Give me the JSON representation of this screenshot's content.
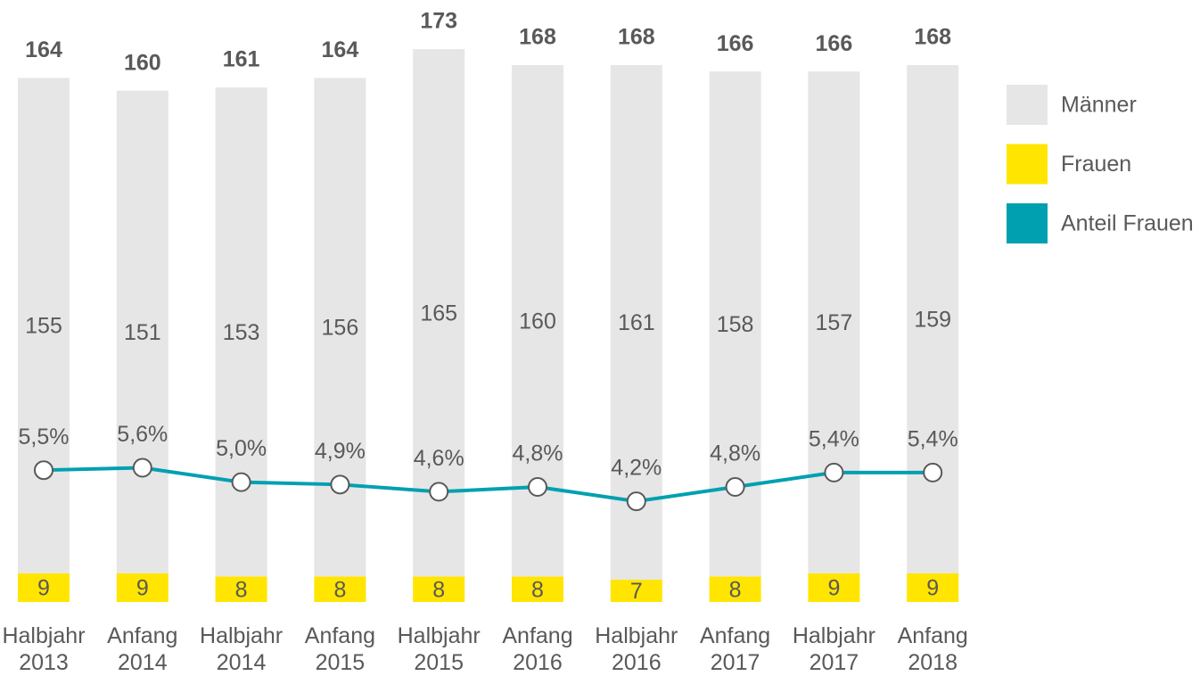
{
  "chart_data": {
    "type": "bar",
    "categories": [
      "Halbjahr 2013",
      "Anfang 2014",
      "Halbjahr 2014",
      "Anfang 2015",
      "Halbjahr 2015",
      "Anfang 2016",
      "Halbjahr 2016",
      "Anfang 2017",
      "Halbjahr 2017",
      "Anfang 2018"
    ],
    "stacked": true,
    "series": [
      {
        "name": "Männer",
        "color": "#e6e6e6",
        "values": [
          155,
          151,
          153,
          156,
          165,
          160,
          161,
          158,
          157,
          159
        ]
      },
      {
        "name": "Frauen",
        "color": "#ffe500",
        "values": [
          9,
          9,
          8,
          8,
          8,
          8,
          7,
          8,
          9,
          9
        ]
      },
      {
        "name": "Anteil Frauen",
        "color": "#00a0b0",
        "type": "line",
        "axis": "y2",
        "values": [
          5.5,
          5.6,
          5.0,
          4.9,
          4.6,
          4.8,
          4.2,
          4.8,
          5.4,
          5.4
        ],
        "value_labels": [
          "5,5%",
          "5,6%",
          "5,0%",
          "4,9%",
          "4,6%",
          "4,8%",
          "4,2%",
          "4,8%",
          "5,4%",
          "5,4%"
        ]
      }
    ],
    "totals": [
      164,
      160,
      161,
      164,
      173,
      168,
      168,
      166,
      166,
      168
    ],
    "ylim": [
      0,
      180
    ],
    "y2lim": [
      0,
      24
    ],
    "legend": "right"
  }
}
